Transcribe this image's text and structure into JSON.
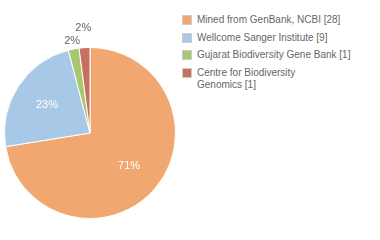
{
  "chart_data": {
    "type": "pie",
    "categories": [
      "Mined from GenBank, NCBI [28]",
      "Wellcome Sanger Institute [9]",
      "Gujarat Biodiversity Gene Bank [1]",
      "Centre for Biodiversity\nGenomics [1]"
    ],
    "values": [
      71,
      23,
      2,
      2
    ],
    "value_labels": [
      "71%",
      "23%",
      "2%",
      "2%"
    ],
    "colors": [
      "#f0a870",
      "#a8c8e8",
      "#a8c870",
      "#c87060"
    ],
    "data_labels": true,
    "legend": "right"
  }
}
